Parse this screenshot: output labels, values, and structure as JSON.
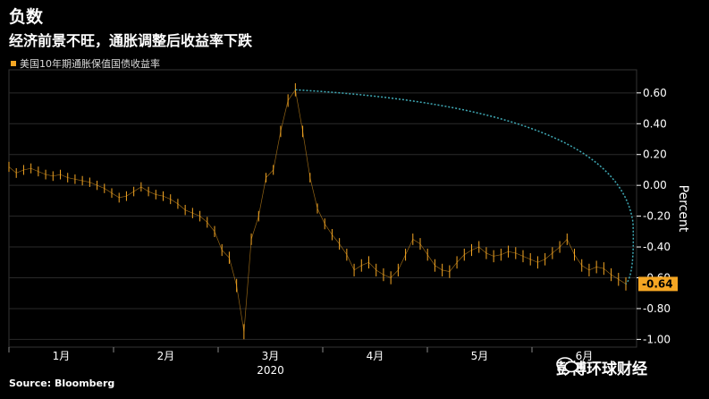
{
  "header": {
    "title": "负数",
    "subtitle": "经济前景不旺，通胀调整后收益率下跌"
  },
  "legend": {
    "label": "美国10年期通胀保值国债收益率",
    "color": "#f5a623"
  },
  "footer": {
    "source": "Source: Bloomberg",
    "watermark": "彭博环球财经"
  },
  "chart_data": {
    "type": "line",
    "ylabel": "Percent",
    "ylim": [
      -1.05,
      0.75
    ],
    "y_ticks": [
      "0.60",
      "0.40",
      "0.20",
      "0.00",
      "-0.20",
      "-0.40",
      "-0.60",
      "-0.80",
      "-1.00"
    ],
    "x_ticks": [
      "1月",
      "2月",
      "3月",
      "4月",
      "5月",
      "6月"
    ],
    "x_year_label": "2020",
    "last_value_label": "-0.64",
    "series": [
      {
        "values": [
          0.12,
          0.08,
          0.1,
          0.11,
          0.09,
          0.07,
          0.06,
          0.07,
          0.05,
          0.04,
          0.03,
          0.02,
          0.0,
          -0.02,
          -0.05,
          -0.08,
          -0.07,
          -0.04,
          -0.01,
          -0.04,
          -0.06,
          -0.07,
          -0.09,
          -0.12,
          -0.16,
          -0.18,
          -0.2,
          -0.24,
          -0.3,
          -0.42,
          -0.47,
          -0.65,
          -0.95,
          -0.35,
          -0.2,
          0.05,
          0.1,
          0.35,
          0.55,
          0.62,
          0.35,
          0.05,
          -0.15,
          -0.25,
          -0.32,
          -0.38,
          -0.45,
          -0.55,
          -0.52,
          -0.5,
          -0.55,
          -0.58,
          -0.6,
          -0.55,
          -0.45,
          -0.35,
          -0.38,
          -0.45,
          -0.52,
          -0.55,
          -0.56,
          -0.5,
          -0.45,
          -0.42,
          -0.4,
          -0.44,
          -0.46,
          -0.45,
          -0.43,
          -0.44,
          -0.46,
          -0.48,
          -0.5,
          -0.48,
          -0.44,
          -0.4,
          -0.35,
          -0.45,
          -0.52,
          -0.55,
          -0.53,
          -0.54,
          -0.58,
          -0.61,
          -0.64
        ]
      }
    ],
    "curve_color": "#3fa9b5",
    "colors": {
      "background": "#000000",
      "series": "#f5a623",
      "label_bg": "#f5a623"
    }
  }
}
